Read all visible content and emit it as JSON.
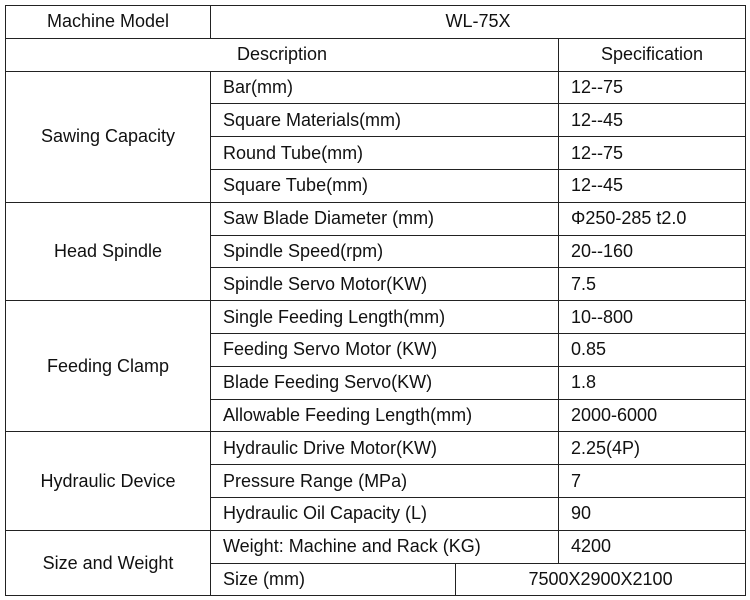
{
  "header": {
    "model_label": "Machine Model",
    "model": "WL-75X",
    "description_label": "Description",
    "specification_label": "Specification"
  },
  "groups": [
    {
      "name": "Sawing Capacity",
      "rows": [
        [
          "Bar(mm)",
          "12--75"
        ],
        [
          "Square Materials(mm)",
          "12--45"
        ],
        [
          "Round Tube(mm)",
          "12--75"
        ],
        [
          "Square Tube(mm)",
          "12--45"
        ]
      ]
    },
    {
      "name": "Head Spindle",
      "rows": [
        [
          "Saw Blade Diameter (mm)",
          "Φ250-285 t2.0"
        ],
        [
          "Spindle Speed(rpm)",
          "20--160"
        ],
        [
          "Spindle Servo Motor(KW)",
          "7.5"
        ]
      ]
    },
    {
      "name": "Feeding Clamp",
      "rows": [
        [
          "Single Feeding Length(mm)",
          "10--800"
        ],
        [
          "Feeding Servo Motor (KW)",
          "0.85"
        ],
        [
          "Blade Feeding Servo(KW)",
          "1.8"
        ],
        [
          "Allowable Feeding Length(mm)",
          "2000-6000"
        ]
      ]
    },
    {
      "name": "Hydraulic Device",
      "rows": [
        [
          "Hydraulic Drive Motor(KW)",
          "2.25(4P)"
        ],
        [
          "Pressure Range (MPa)",
          "7"
        ],
        [
          "Hydraulic Oil Capacity (L)",
          "90"
        ]
      ]
    },
    {
      "name": "Size and Weight",
      "rows": [
        [
          "Weight: Machine and Rack (KG)",
          "4200"
        ],
        [
          "Size (mm)",
          "7500X2900X2100"
        ]
      ]
    }
  ]
}
